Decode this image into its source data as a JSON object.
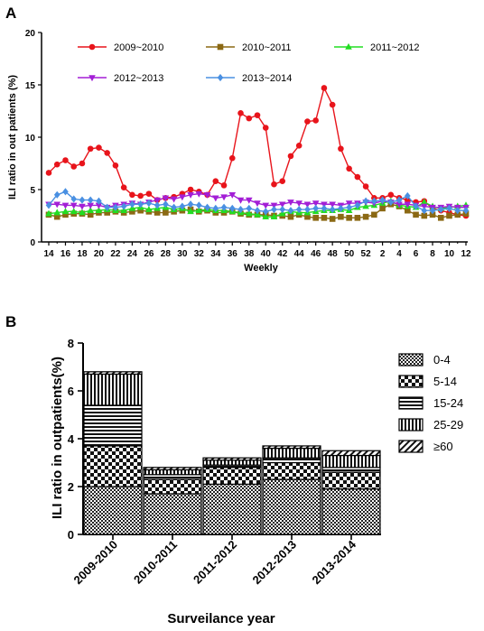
{
  "chart_data": [
    {
      "panel_label": "A",
      "type": "line",
      "xlabel": "Weekly",
      "ylabel": "ILI ratio in out patients (%)",
      "ylim": [
        0,
        20
      ],
      "yticks": [
        0,
        5,
        10,
        15,
        20
      ],
      "x_tick_labels": [
        "14",
        "16",
        "18",
        "20",
        "22",
        "24",
        "26",
        "28",
        "30",
        "32",
        "34",
        "36",
        "38",
        "40",
        "42",
        "44",
        "46",
        "48",
        "50",
        "52",
        "2",
        "4",
        "6",
        "8",
        "10",
        "12"
      ],
      "x": [
        "14",
        "15",
        "16",
        "17",
        "18",
        "19",
        "20",
        "21",
        "22",
        "23",
        "24",
        "25",
        "26",
        "27",
        "28",
        "29",
        "30",
        "31",
        "32",
        "33",
        "34",
        "35",
        "36",
        "37",
        "38",
        "39",
        "40",
        "41",
        "42",
        "43",
        "44",
        "45",
        "46",
        "47",
        "48",
        "49",
        "50",
        "51",
        "52",
        "1",
        "2",
        "3",
        "4",
        "5",
        "6",
        "7",
        "8",
        "9",
        "10",
        "11",
        "12"
      ],
      "legend_position": "top",
      "series": [
        {
          "name": "2009~2010",
          "color": "#e8141b",
          "marker": "circle",
          "values": [
            6.6,
            7.4,
            7.8,
            7.2,
            7.5,
            8.9,
            9.0,
            8.5,
            7.3,
            5.2,
            4.5,
            4.4,
            4.6,
            4.0,
            4.2,
            4.3,
            4.6,
            5.0,
            4.8,
            4.5,
            5.8,
            5.4,
            8.0,
            12.3,
            11.8,
            12.1,
            10.9,
            5.5,
            5.8,
            8.2,
            9.2,
            11.5,
            11.6,
            14.7,
            13.1,
            8.9,
            7.0,
            6.2,
            5.3,
            4.2,
            4.2,
            4.5,
            4.2,
            4.0,
            3.8,
            3.9,
            3.2,
            3.0,
            2.8,
            2.6,
            2.5
          ]
        },
        {
          "name": "2010~2011",
          "color": "#8b6914",
          "marker": "square",
          "values": [
            2.6,
            2.4,
            2.6,
            2.7,
            2.7,
            2.6,
            2.8,
            2.8,
            2.9,
            2.8,
            2.9,
            3.0,
            2.9,
            2.8,
            2.8,
            2.9,
            3.0,
            3.1,
            2.9,
            3.0,
            2.8,
            2.8,
            2.9,
            2.7,
            2.6,
            2.6,
            2.6,
            2.5,
            2.5,
            2.4,
            2.6,
            2.4,
            2.3,
            2.3,
            2.2,
            2.4,
            2.3,
            2.3,
            2.4,
            2.6,
            3.2,
            3.6,
            3.4,
            3.0,
            2.6,
            2.5,
            2.6,
            2.3,
            2.5,
            2.6,
            2.7
          ]
        },
        {
          "name": "2011~2012",
          "color": "#22dd22",
          "marker": "triangle-up",
          "values": [
            2.7,
            2.8,
            2.9,
            2.9,
            2.8,
            3.0,
            3.0,
            3.1,
            3.0,
            3.0,
            3.2,
            3.3,
            3.1,
            3.2,
            3.3,
            3.1,
            3.2,
            2.9,
            3.0,
            3.1,
            3.0,
            3.0,
            2.9,
            2.8,
            2.7,
            2.6,
            2.4,
            2.4,
            2.7,
            2.9,
            2.8,
            2.8,
            2.9,
            3.0,
            3.0,
            3.1,
            3.0,
            3.3,
            3.4,
            3.5,
            3.7,
            3.9,
            3.5,
            3.4,
            3.3,
            3.8,
            3.4,
            3.2,
            3.3,
            3.4,
            3.5
          ]
        },
        {
          "name": "2012~2013",
          "color": "#a31ed6",
          "marker": "triangle-down",
          "values": [
            3.6,
            3.6,
            3.5,
            3.5,
            3.4,
            3.5,
            3.5,
            3.3,
            3.5,
            3.6,
            3.7,
            3.6,
            3.8,
            4.0,
            4.2,
            4.1,
            4.3,
            4.5,
            4.6,
            4.5,
            4.2,
            4.3,
            4.5,
            4.0,
            4.0,
            3.7,
            3.5,
            3.5,
            3.6,
            3.8,
            3.7,
            3.6,
            3.7,
            3.6,
            3.6,
            3.5,
            3.7,
            3.7,
            3.8,
            3.7,
            3.9,
            3.8,
            3.6,
            3.6,
            3.5,
            3.4,
            3.3,
            3.3,
            3.4,
            3.3,
            3.3
          ]
        },
        {
          "name": "2013~2014",
          "color": "#4a90e2",
          "marker": "diamond",
          "values": [
            3.5,
            4.5,
            4.8,
            4.1,
            4.0,
            4.0,
            3.9,
            3.3,
            3.3,
            3.4,
            3.6,
            3.6,
            3.7,
            3.5,
            3.6,
            3.3,
            3.4,
            3.6,
            3.5,
            3.3,
            3.2,
            3.3,
            3.2,
            3.1,
            3.2,
            3.0,
            2.9,
            3.1,
            3.1,
            3.0,
            3.1,
            3.1,
            3.2,
            3.2,
            3.1,
            3.2,
            3.3,
            3.5,
            3.9,
            3.9,
            4.0,
            3.8,
            4.0,
            4.4,
            3.4,
            3.0,
            3.0,
            3.1,
            3.2,
            3.0,
            3.0
          ]
        }
      ]
    },
    {
      "panel_label": "B",
      "type": "bar",
      "stacked": true,
      "xlabel": "Surveilance year",
      "ylabel": "ILI ratio in outpatients(%)",
      "ylim": [
        0,
        8
      ],
      "yticks": [
        0,
        2,
        4,
        6,
        8
      ],
      "categories": [
        "2009-2010",
        "2010-2011",
        "2011-2012",
        "2012-2013",
        "2013-2014"
      ],
      "legend_position": "right",
      "series": [
        {
          "name": "0-4",
          "pattern": "checker-fine",
          "values": [
            2.0,
            1.7,
            2.1,
            2.3,
            1.9
          ]
        },
        {
          "name": "5-14",
          "pattern": "checker-coarse",
          "values": [
            1.7,
            0.6,
            0.7,
            0.7,
            0.7
          ]
        },
        {
          "name": "15-24",
          "pattern": "horizontal-lines",
          "values": [
            1.7,
            0.2,
            0.1,
            0.2,
            0.2
          ]
        },
        {
          "name": "25-29",
          "pattern": "vertical-lines",
          "values": [
            1.3,
            0.2,
            0.2,
            0.4,
            0.5
          ]
        },
        {
          "name": "≥60",
          "pattern": "diagonal-lines",
          "values": [
            0.1,
            0.1,
            0.1,
            0.1,
            0.2
          ]
        }
      ]
    }
  ]
}
